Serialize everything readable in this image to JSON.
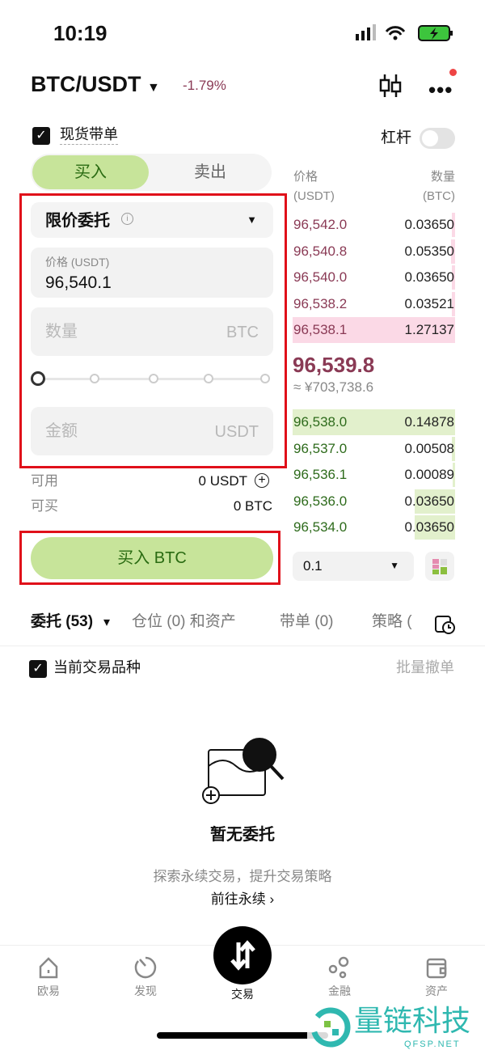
{
  "status": {
    "time": "10:19"
  },
  "header": {
    "pair": "BTC/USDT",
    "change": "-1.79%"
  },
  "options": {
    "spot_copy": "现货带单",
    "leverage": "杠杆",
    "leverage_on": false
  },
  "side_tabs": {
    "buy": "买入",
    "sell": "卖出"
  },
  "form": {
    "order_type": "限价委托",
    "price_label": "价格 (USDT)",
    "price_value": "96,540.1",
    "qty_placeholder": "数量",
    "qty_unit": "BTC",
    "amount_placeholder": "金额",
    "amount_unit": "USDT",
    "slider_percent": 0,
    "available_label": "可用",
    "available_value": "0 USDT",
    "can_buy_label": "可买",
    "can_buy_value": "0 BTC",
    "submit": "买入 BTC"
  },
  "orderbook": {
    "price_header": "价格",
    "price_unit": "(USDT)",
    "qty_header": "数量",
    "qty_unit": "(BTC)",
    "asks": [
      {
        "price": "96,542.0",
        "qty": "0.03650"
      },
      {
        "price": "96,540.8",
        "qty": "0.05350"
      },
      {
        "price": "96,540.0",
        "qty": "0.03650"
      },
      {
        "price": "96,538.2",
        "qty": "0.03521"
      },
      {
        "price": "96,538.1",
        "qty": "1.27137"
      }
    ],
    "last_price": "96,539.8",
    "last_cny": "≈ ¥703,738.6",
    "bids": [
      {
        "price": "96,538.0",
        "qty": "0.14878"
      },
      {
        "price": "96,537.0",
        "qty": "0.00508"
      },
      {
        "price": "96,536.1",
        "qty": "0.00089"
      },
      {
        "price": "96,536.0",
        "qty": "0.03650"
      },
      {
        "price": "96,534.0",
        "qty": "0.03650"
      }
    ],
    "precision": "0.1",
    "ask_color": "#8a3a55",
    "bid_color": "#2e6b1c"
  },
  "orders_tabs": [
    "委托 (53)",
    "仓位 (0) 和资产",
    "带单 (0)",
    "策略 ("
  ],
  "filter": {
    "current_pair": "当前交易品种",
    "batch_cancel": "批量撤单"
  },
  "empty": {
    "title": "暂无委托",
    "subtitle": "探索永续交易，提升交易策略",
    "link": "前往永续 ›"
  },
  "nav": [
    {
      "label": "欧易",
      "icon": "home-icon"
    },
    {
      "label": "发现",
      "icon": "discover-icon"
    },
    {
      "label": "交易",
      "icon": "trade-icon"
    },
    {
      "label": "金融",
      "icon": "finance-icon"
    },
    {
      "label": "资产",
      "icon": "wallet-icon"
    }
  ],
  "watermark": {
    "text": "量链科技",
    "sub": "QFSP.NET"
  }
}
